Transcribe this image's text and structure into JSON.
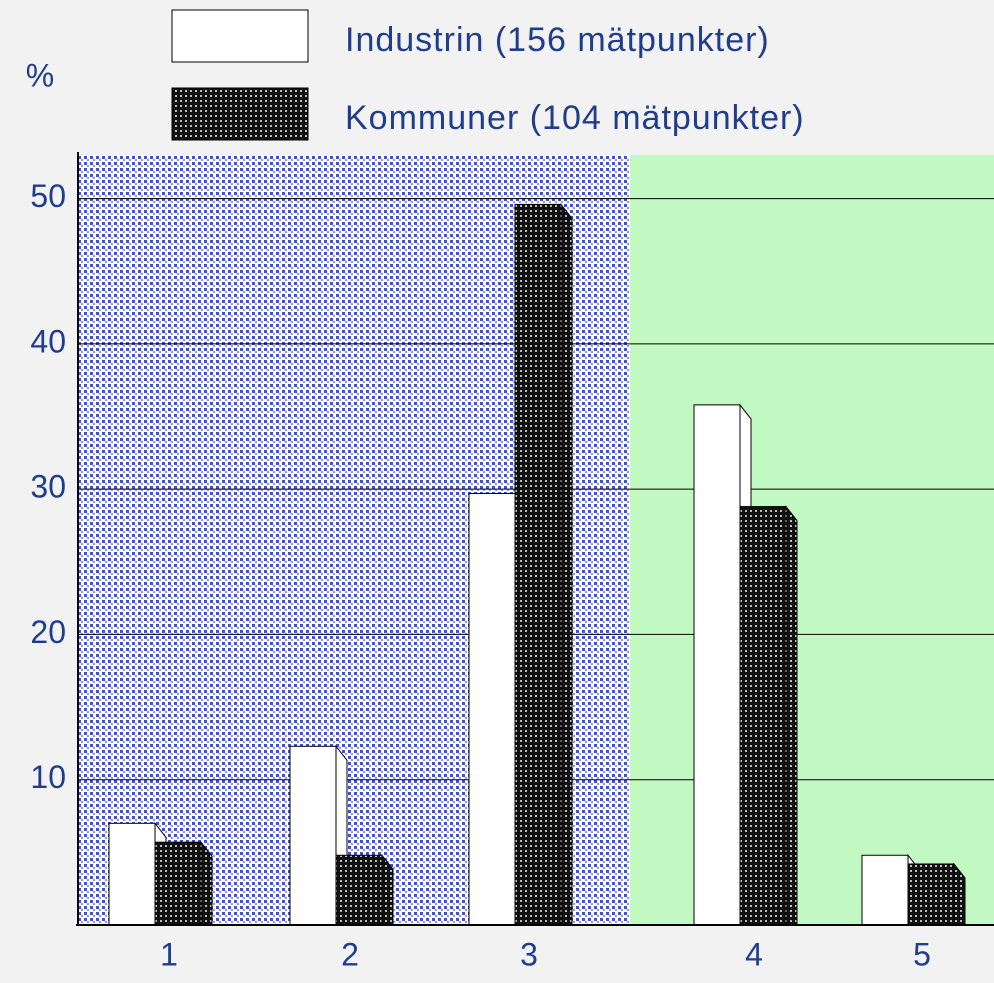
{
  "chart_data": {
    "type": "bar",
    "y_label": "%",
    "categories": [
      "1",
      "2",
      "3",
      "4",
      "5"
    ],
    "series": [
      {
        "name": "Industrin (156 mätpunkter)",
        "color": "#ffffff",
        "values": [
          7.0,
          12.3,
          29.7,
          35.8,
          4.8
        ]
      },
      {
        "name": "Kommuner (104 mätpunkter)",
        "color": "#222222",
        "values": [
          5.7,
          4.8,
          49.6,
          28.8,
          4.2
        ]
      }
    ],
    "ylim": [
      0,
      53
    ],
    "yticks": [
      10,
      20,
      30,
      40,
      50
    ],
    "grid": true
  }
}
